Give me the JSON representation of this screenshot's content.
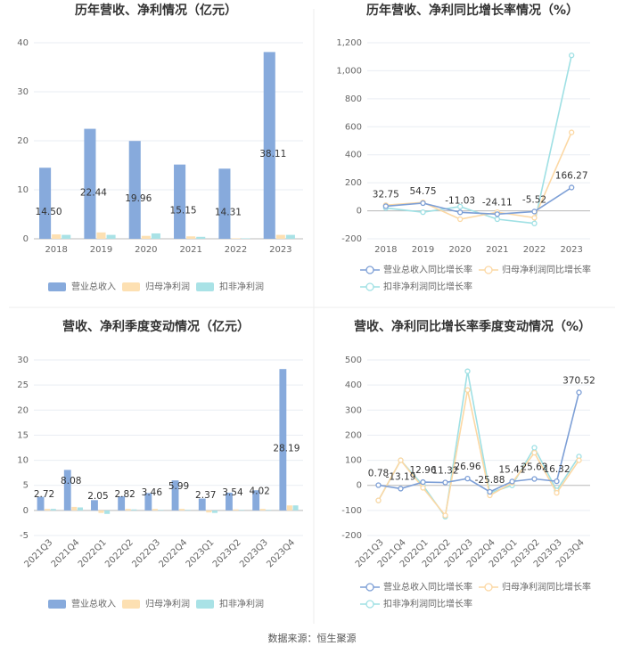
{
  "chart_data": [
    {
      "type": "bar",
      "title": "历年营收、净利情况（亿元）",
      "categories": [
        "2018",
        "2019",
        "2020",
        "2021",
        "2022",
        "2023"
      ],
      "series": [
        {
          "name": "营业总收入",
          "color": "#87aadc",
          "values": [
            14.5,
            22.44,
            19.96,
            15.15,
            14.31,
            38.11
          ],
          "value_labels": [
            "14.50",
            "22.44",
            "19.96",
            "15.15",
            "14.31",
            "38.11"
          ]
        },
        {
          "name": "归母净利润",
          "color": "#fde0b2",
          "values": [
            0.9,
            1.3,
            0.6,
            0.5,
            0.1,
            0.8
          ]
        },
        {
          "name": "扣非净利润",
          "color": "#a9e2e6",
          "values": [
            0.8,
            0.8,
            1.1,
            0.4,
            0.1,
            0.8
          ]
        }
      ],
      "ylim": [
        0,
        40
      ],
      "yticks": [
        0,
        10,
        20,
        30,
        40
      ],
      "grid": true
    },
    {
      "type": "line",
      "title": "历年营收、净利同比增长率情况（%）",
      "categories": [
        "2018",
        "2019",
        "2020",
        "2021",
        "2022",
        "2023"
      ],
      "series": [
        {
          "name": "营业总收入同比增长率",
          "color": "#7d9fd6",
          "values": [
            32.75,
            54.75,
            -11.03,
            -24.11,
            -5.52,
            166.27
          ],
          "value_labels": [
            "32.75",
            "54.75",
            "-11.03",
            "-24.11",
            "-5.52",
            "166.27"
          ]
        },
        {
          "name": "归母净利润同比增长率",
          "color": "#fcd8a4",
          "values": [
            40,
            60,
            -60,
            -10,
            -50,
            560
          ]
        },
        {
          "name": "扣非净利润同比增长率",
          "color": "#9fe0e4",
          "values": [
            20,
            -10,
            30,
            -60,
            -90,
            1110
          ]
        }
      ],
      "ylim": [
        -200,
        1200
      ],
      "yticks": [
        -200,
        0,
        200,
        400,
        600,
        800,
        {
          "value": 1000,
          "label": "1,000"
        },
        {
          "value": 1200,
          "label": "1,200"
        }
      ],
      "grid": true
    },
    {
      "type": "bar",
      "title": "营收、净利季度变动情况（亿元）",
      "categories": [
        "2021Q3",
        "2021Q4",
        "2022Q1",
        "2022Q2",
        "2022Q3",
        "2022Q4",
        "2023Q1",
        "2023Q2",
        "2023Q3",
        "2023Q4"
      ],
      "series": [
        {
          "name": "营业总收入",
          "color": "#87aadc",
          "values": [
            2.72,
            8.08,
            2.05,
            2.82,
            3.46,
            5.99,
            2.37,
            3.54,
            4.02,
            28.19
          ],
          "value_labels": [
            "2.72",
            "8.08",
            "2.05",
            "2.82",
            "3.46",
            "5.99",
            "2.37",
            "3.54",
            "4.02",
            "28.19"
          ]
        },
        {
          "name": "归母净利润",
          "color": "#fde0b2",
          "values": [
            0.3,
            0.7,
            -0.5,
            0.3,
            0.3,
            0.3,
            -0.4,
            0.2,
            0.3,
            1.0
          ]
        },
        {
          "name": "扣非净利润",
          "color": "#a9e2e6",
          "values": [
            0.3,
            0.6,
            -0.7,
            0.2,
            0.1,
            0.1,
            -0.5,
            0.1,
            0.1,
            1.0
          ]
        }
      ],
      "ylim": [
        -5,
        30
      ],
      "yticks": [
        -5,
        0,
        5,
        10,
        15,
        20,
        25,
        30
      ],
      "grid": true
    },
    {
      "type": "line",
      "title": "营收、净利同比增长率季度变动情况（%）",
      "categories": [
        "2021Q3",
        "2021Q4",
        "2022Q1",
        "2022Q2",
        "2022Q3",
        "2022Q4",
        "2023Q1",
        "2023Q2",
        "2023Q3",
        "2023Q4"
      ],
      "series": [
        {
          "name": "营业总收入同比增长率",
          "color": "#7d9fd6",
          "values": [
            0.78,
            -13.19,
            12.96,
            11.32,
            26.96,
            -25.88,
            15.41,
            25.62,
            16.32,
            370.52
          ],
          "value_labels": [
            "0.78",
            "-13.19",
            "12.96",
            "11.32",
            "26.96",
            "-25.88",
            "15.41",
            "25.62",
            "16.32",
            "370.52"
          ]
        },
        {
          "name": "归母净利润同比增长率",
          "color": "#fcd8a4",
          "values": [
            -60,
            100,
            -10,
            -120,
            380,
            -40,
            10,
            130,
            -30,
            100
          ]
        },
        {
          "name": "扣非净利润同比增长率",
          "color": "#9fe0e4",
          "values": [
            -60,
            100,
            0,
            -125,
            455,
            -30,
            0,
            150,
            -20,
            115
          ]
        }
      ],
      "ylim": [
        -200,
        500
      ],
      "yticks": [
        -200,
        -100,
        0,
        100,
        200,
        300,
        400,
        500
      ],
      "grid": true
    }
  ],
  "source": "数据来源：恒生聚源"
}
